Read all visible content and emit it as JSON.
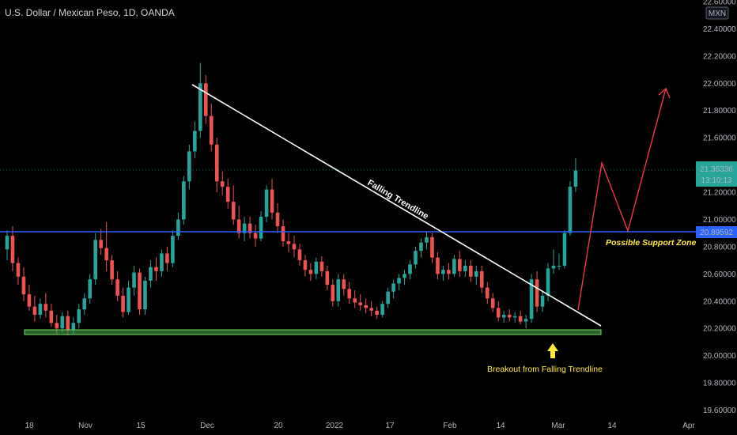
{
  "title": "U.S. Dollar / Mexican Peso, 1D, OANDA",
  "currency_badge": "MXN",
  "colors": {
    "background": "#000000",
    "up": "#26a69a",
    "down": "#ef5350",
    "resistance": "#2962ff",
    "support": "#4caf50",
    "trendline": "#ffffff",
    "projection": "#f23645",
    "annotation_yellow": "#ffeb3b"
  },
  "chart_data": {
    "type": "candlestick",
    "symbol": "USDMXN",
    "interval": "1D",
    "ylim": [
      19.6,
      22.6
    ],
    "y_ticks": [
      "22.60000",
      "22.40000",
      "22.20000",
      "22.00000",
      "21.80000",
      "21.60000",
      "21.40000",
      "21.20000",
      "21.00000",
      "20.80000",
      "20.60000",
      "20.40000",
      "20.20000",
      "20.00000",
      "19.80000",
      "19.60000"
    ],
    "x_ticks": [
      "18",
      "Nov",
      "15",
      "Dec",
      "20",
      "2022",
      "17",
      "Feb",
      "14",
      "Mar",
      "14",
      "Apr"
    ],
    "last_price": "21.36336",
    "countdown": "13:10:13",
    "level_price": "20.89592",
    "candles": [
      {
        "o": 20.78,
        "h": 20.92,
        "l": 20.7,
        "c": 20.88
      },
      {
        "o": 20.88,
        "h": 20.95,
        "l": 20.62,
        "c": 20.68
      },
      {
        "o": 20.68,
        "h": 20.72,
        "l": 20.52,
        "c": 20.58
      },
      {
        "o": 20.58,
        "h": 20.65,
        "l": 20.4,
        "c": 20.45
      },
      {
        "o": 20.45,
        "h": 20.52,
        "l": 20.33,
        "c": 20.36
      },
      {
        "o": 20.36,
        "h": 20.44,
        "l": 20.25,
        "c": 20.3
      },
      {
        "o": 20.3,
        "h": 20.42,
        "l": 20.27,
        "c": 20.38
      },
      {
        "o": 20.38,
        "h": 20.46,
        "l": 20.28,
        "c": 20.33
      },
      {
        "o": 20.33,
        "h": 20.38,
        "l": 20.21,
        "c": 20.24
      },
      {
        "o": 20.24,
        "h": 20.3,
        "l": 20.16,
        "c": 20.2
      },
      {
        "o": 20.2,
        "h": 20.32,
        "l": 20.17,
        "c": 20.29
      },
      {
        "o": 20.29,
        "h": 20.33,
        "l": 20.15,
        "c": 20.19
      },
      {
        "o": 20.19,
        "h": 20.28,
        "l": 20.16,
        "c": 20.24
      },
      {
        "o": 20.24,
        "h": 20.38,
        "l": 20.2,
        "c": 20.34
      },
      {
        "o": 20.34,
        "h": 20.46,
        "l": 20.3,
        "c": 20.42
      },
      {
        "o": 20.42,
        "h": 20.6,
        "l": 20.38,
        "c": 20.56
      },
      {
        "o": 20.56,
        "h": 20.9,
        "l": 20.52,
        "c": 20.85
      },
      {
        "o": 20.85,
        "h": 20.93,
        "l": 20.74,
        "c": 20.79
      },
      {
        "o": 20.79,
        "h": 20.98,
        "l": 20.62,
        "c": 20.7
      },
      {
        "o": 20.7,
        "h": 20.74,
        "l": 20.52,
        "c": 20.56
      },
      {
        "o": 20.56,
        "h": 20.62,
        "l": 20.4,
        "c": 20.44
      },
      {
        "o": 20.44,
        "h": 20.5,
        "l": 20.28,
        "c": 20.32
      },
      {
        "o": 20.32,
        "h": 20.55,
        "l": 20.3,
        "c": 20.5
      },
      {
        "o": 20.5,
        "h": 20.66,
        "l": 20.44,
        "c": 20.61
      },
      {
        "o": 20.61,
        "h": 20.64,
        "l": 20.3,
        "c": 20.34
      },
      {
        "o": 20.34,
        "h": 20.58,
        "l": 20.3,
        "c": 20.55
      },
      {
        "o": 20.55,
        "h": 20.7,
        "l": 20.5,
        "c": 20.65
      },
      {
        "o": 20.65,
        "h": 20.72,
        "l": 20.55,
        "c": 20.62
      },
      {
        "o": 20.62,
        "h": 20.78,
        "l": 20.58,
        "c": 20.75
      },
      {
        "o": 20.75,
        "h": 20.8,
        "l": 20.62,
        "c": 20.68
      },
      {
        "o": 20.68,
        "h": 20.92,
        "l": 20.65,
        "c": 20.88
      },
      {
        "o": 20.88,
        "h": 21.05,
        "l": 20.85,
        "c": 21.0
      },
      {
        "o": 21.0,
        "h": 21.32,
        "l": 20.96,
        "c": 21.28
      },
      {
        "o": 21.28,
        "h": 21.55,
        "l": 21.22,
        "c": 21.5
      },
      {
        "o": 21.5,
        "h": 21.72,
        "l": 21.45,
        "c": 21.65
      },
      {
        "o": 21.65,
        "h": 22.15,
        "l": 21.6,
        "c": 22.0
      },
      {
        "o": 22.0,
        "h": 22.06,
        "l": 21.7,
        "c": 21.76
      },
      {
        "o": 21.76,
        "h": 21.85,
        "l": 21.5,
        "c": 21.55
      },
      {
        "o": 21.55,
        "h": 21.6,
        "l": 21.2,
        "c": 21.28
      },
      {
        "o": 21.28,
        "h": 21.35,
        "l": 21.18,
        "c": 21.24
      },
      {
        "o": 21.24,
        "h": 21.3,
        "l": 21.08,
        "c": 21.13
      },
      {
        "o": 21.13,
        "h": 21.25,
        "l": 20.96,
        "c": 21.0
      },
      {
        "o": 21.0,
        "h": 21.1,
        "l": 20.86,
        "c": 20.9
      },
      {
        "o": 20.9,
        "h": 21.02,
        "l": 20.84,
        "c": 20.97
      },
      {
        "o": 20.97,
        "h": 21.02,
        "l": 20.86,
        "c": 20.9
      },
      {
        "o": 20.9,
        "h": 20.96,
        "l": 20.8,
        "c": 20.86
      },
      {
        "o": 20.86,
        "h": 21.06,
        "l": 20.84,
        "c": 21.02
      },
      {
        "o": 21.02,
        "h": 21.25,
        "l": 20.98,
        "c": 21.22
      },
      {
        "o": 21.22,
        "h": 21.3,
        "l": 21.0,
        "c": 21.05
      },
      {
        "o": 21.05,
        "h": 21.12,
        "l": 20.9,
        "c": 20.95
      },
      {
        "o": 20.95,
        "h": 21.0,
        "l": 20.8,
        "c": 20.84
      },
      {
        "o": 20.84,
        "h": 20.9,
        "l": 20.76,
        "c": 20.82
      },
      {
        "o": 20.82,
        "h": 20.88,
        "l": 20.72,
        "c": 20.78
      },
      {
        "o": 20.78,
        "h": 20.82,
        "l": 20.66,
        "c": 20.7
      },
      {
        "o": 20.7,
        "h": 20.74,
        "l": 20.58,
        "c": 20.63
      },
      {
        "o": 20.63,
        "h": 20.68,
        "l": 20.55,
        "c": 20.6
      },
      {
        "o": 20.6,
        "h": 20.72,
        "l": 20.56,
        "c": 20.69
      },
      {
        "o": 20.69,
        "h": 20.73,
        "l": 20.58,
        "c": 20.62
      },
      {
        "o": 20.62,
        "h": 20.66,
        "l": 20.48,
        "c": 20.52
      },
      {
        "o": 20.52,
        "h": 20.56,
        "l": 20.36,
        "c": 20.4
      },
      {
        "o": 20.4,
        "h": 20.6,
        "l": 20.36,
        "c": 20.56
      },
      {
        "o": 20.56,
        "h": 20.6,
        "l": 20.44,
        "c": 20.49
      },
      {
        "o": 20.49,
        "h": 20.54,
        "l": 20.38,
        "c": 20.42
      },
      {
        "o": 20.42,
        "h": 20.48,
        "l": 20.35,
        "c": 20.39
      },
      {
        "o": 20.39,
        "h": 20.45,
        "l": 20.33,
        "c": 20.37
      },
      {
        "o": 20.37,
        "h": 20.42,
        "l": 20.31,
        "c": 20.35
      },
      {
        "o": 20.35,
        "h": 20.4,
        "l": 20.29,
        "c": 20.33
      },
      {
        "o": 20.33,
        "h": 20.36,
        "l": 20.27,
        "c": 20.3
      },
      {
        "o": 20.3,
        "h": 20.4,
        "l": 20.28,
        "c": 20.38
      },
      {
        "o": 20.38,
        "h": 20.5,
        "l": 20.35,
        "c": 20.47
      },
      {
        "o": 20.47,
        "h": 20.56,
        "l": 20.42,
        "c": 20.53
      },
      {
        "o": 20.53,
        "h": 20.6,
        "l": 20.48,
        "c": 20.57
      },
      {
        "o": 20.57,
        "h": 20.63,
        "l": 20.52,
        "c": 20.6
      },
      {
        "o": 20.6,
        "h": 20.7,
        "l": 20.56,
        "c": 20.67
      },
      {
        "o": 20.67,
        "h": 20.8,
        "l": 20.64,
        "c": 20.77
      },
      {
        "o": 20.77,
        "h": 20.86,
        "l": 20.72,
        "c": 20.83
      },
      {
        "o": 20.83,
        "h": 20.91,
        "l": 20.78,
        "c": 20.87
      },
      {
        "o": 20.87,
        "h": 20.9,
        "l": 20.68,
        "c": 20.72
      },
      {
        "o": 20.72,
        "h": 20.76,
        "l": 20.56,
        "c": 20.6
      },
      {
        "o": 20.6,
        "h": 20.66,
        "l": 20.55,
        "c": 20.63
      },
      {
        "o": 20.63,
        "h": 20.68,
        "l": 20.56,
        "c": 20.6
      },
      {
        "o": 20.6,
        "h": 20.74,
        "l": 20.58,
        "c": 20.71
      },
      {
        "o": 20.71,
        "h": 20.77,
        "l": 20.58,
        "c": 20.62
      },
      {
        "o": 20.62,
        "h": 20.7,
        "l": 20.58,
        "c": 20.66
      },
      {
        "o": 20.66,
        "h": 20.7,
        "l": 20.54,
        "c": 20.58
      },
      {
        "o": 20.58,
        "h": 20.66,
        "l": 20.52,
        "c": 20.62
      },
      {
        "o": 20.62,
        "h": 20.66,
        "l": 20.46,
        "c": 20.5
      },
      {
        "o": 20.5,
        "h": 20.54,
        "l": 20.38,
        "c": 20.42
      },
      {
        "o": 20.42,
        "h": 20.46,
        "l": 20.32,
        "c": 20.35
      },
      {
        "o": 20.35,
        "h": 20.4,
        "l": 20.25,
        "c": 20.28
      },
      {
        "o": 20.28,
        "h": 20.33,
        "l": 20.24,
        "c": 20.3
      },
      {
        "o": 20.3,
        "h": 20.34,
        "l": 20.25,
        "c": 20.28
      },
      {
        "o": 20.28,
        "h": 20.32,
        "l": 20.24,
        "c": 20.29
      },
      {
        "o": 20.29,
        "h": 20.33,
        "l": 20.23,
        "c": 20.25
      },
      {
        "o": 20.25,
        "h": 20.3,
        "l": 20.2,
        "c": 20.27
      },
      {
        "o": 20.27,
        "h": 20.6,
        "l": 20.24,
        "c": 20.56
      },
      {
        "o": 20.56,
        "h": 20.62,
        "l": 20.32,
        "c": 20.36
      },
      {
        "o": 20.36,
        "h": 20.48,
        "l": 20.32,
        "c": 20.44
      },
      {
        "o": 20.44,
        "h": 20.68,
        "l": 20.4,
        "c": 20.64
      },
      {
        "o": 20.64,
        "h": 20.78,
        "l": 20.6,
        "c": 20.66
      },
      {
        "o": 20.66,
        "h": 20.75,
        "l": 20.63,
        "c": 20.66
      },
      {
        "o": 20.66,
        "h": 20.92,
        "l": 20.64,
        "c": 20.9
      },
      {
        "o": 20.9,
        "h": 21.28,
        "l": 20.88,
        "c": 21.24
      },
      {
        "o": 21.24,
        "h": 21.45,
        "l": 21.2,
        "c": 21.36
      }
    ]
  },
  "annotations": {
    "trendline_label": "Falling Trendline",
    "support_zone_label": "Possible Support Zone",
    "breakout_label": "Breakout from Falling Trendline"
  }
}
